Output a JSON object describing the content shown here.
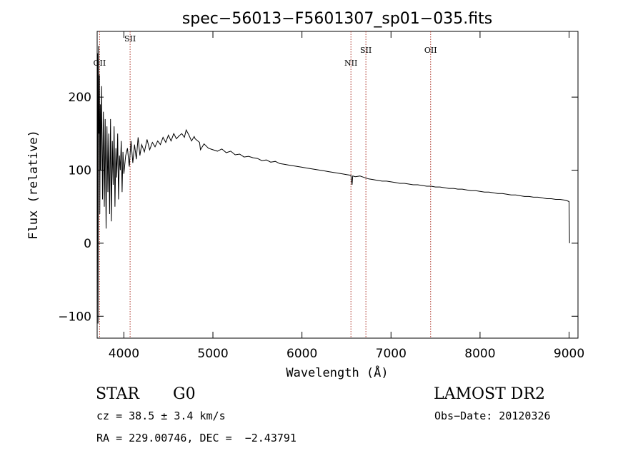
{
  "chart_data": {
    "type": "line",
    "title": "spec−56013−F5601307_sp01−035.fits",
    "xlabel": "Wavelength (Å)",
    "ylabel": "Flux (relative)",
    "xlim": [
      3700,
      9100
    ],
    "ylim": [
      -130,
      290
    ],
    "xticks": [
      4000,
      5000,
      6000,
      7000,
      8000,
      9000
    ],
    "yticks": [
      -100,
      0,
      100,
      200
    ],
    "ytick_labels": [
      "−100",
      "0",
      "100",
      "200"
    ],
    "grid": false,
    "series": [
      {
        "x": [
          3700,
          3705,
          3710,
          3715,
          3720,
          3725,
          3730,
          3735,
          3740,
          3750,
          3760,
          3770,
          3780,
          3790,
          3800,
          3810,
          3820,
          3830,
          3840,
          3850,
          3860,
          3870,
          3880,
          3890,
          3900,
          3910,
          3920,
          3930,
          3940,
          3950,
          3960,
          3970,
          3980,
          3990,
          4000,
          4020,
          4040,
          4060,
          4080,
          4100,
          4120,
          4140,
          4160,
          4180,
          4200,
          4230,
          4260,
          4290,
          4320,
          4350,
          4380,
          4410,
          4440,
          4470,
          4500,
          4530,
          4560,
          4590,
          4620,
          4650,
          4680,
          4700,
          4730,
          4760,
          4790,
          4800,
          4850,
          4860,
          4900,
          4950,
          5000,
          5050,
          5100,
          5150,
          5200,
          5250,
          5300,
          5350,
          5400,
          5450,
          5500,
          5550,
          5600,
          5650,
          5700,
          5750,
          5800,
          5850,
          5900,
          5950,
          6000,
          6050,
          6100,
          6150,
          6200,
          6250,
          6300,
          6350,
          6400,
          6450,
          6500,
          6550,
          6563,
          6570,
          6600,
          6650,
          6700,
          6750,
          6800,
          6850,
          6900,
          6950,
          7000,
          7050,
          7100,
          7150,
          7200,
          7250,
          7300,
          7350,
          7400,
          7450,
          7500,
          7550,
          7600,
          7650,
          7700,
          7750,
          7800,
          7850,
          7900,
          7950,
          8000,
          8050,
          8100,
          8150,
          8200,
          8250,
          8300,
          8350,
          8400,
          8450,
          8500,
          8550,
          8600,
          8650,
          8700,
          8750,
          8800,
          8850,
          8900,
          8950,
          8980,
          9000,
          9005
        ],
        "y": [
          0,
          260,
          -110,
          270,
          150,
          230,
          40,
          190,
          100,
          215,
          60,
          180,
          50,
          170,
          20,
          160,
          70,
          150,
          40,
          170,
          30,
          140,
          80,
          160,
          50,
          130,
          90,
          150,
          60,
          120,
          100,
          140,
          70,
          125,
          95,
          120,
          130,
          105,
          140,
          110,
          135,
          115,
          145,
          120,
          135,
          125,
          142,
          128,
          138,
          132,
          140,
          135,
          145,
          138,
          148,
          140,
          150,
          143,
          147,
          150,
          145,
          155,
          148,
          140,
          146,
          143,
          138,
          128,
          136,
          130,
          128,
          126,
          129,
          124,
          126,
          121,
          122,
          118,
          119,
          117,
          116,
          113,
          114,
          111,
          112,
          109,
          108,
          107,
          106,
          105,
          104,
          103,
          102,
          101,
          100,
          99,
          98,
          97,
          96,
          95,
          94,
          93,
          80,
          92,
          91,
          92,
          90,
          88,
          87,
          86,
          85,
          85,
          84,
          83,
          82,
          82,
          81,
          80,
          80,
          79,
          78,
          78,
          77,
          77,
          76,
          75,
          75,
          74,
          74,
          73,
          72,
          72,
          71,
          70,
          70,
          69,
          68,
          68,
          67,
          66,
          66,
          65,
          64,
          64,
          63,
          63,
          62,
          61,
          61,
          60,
          60,
          59,
          58,
          57,
          0
        ]
      }
    ],
    "lines": [
      {
        "label": "OII",
        "x": 3727
      },
      {
        "label": "SII",
        "x": 4070
      },
      {
        "label": "NII",
        "x": 6550
      },
      {
        "label": "SII",
        "x": 6718
      },
      {
        "label": "OII",
        "x": 7445
      }
    ]
  },
  "info": {
    "class_label": "STAR",
    "subclass": "G0",
    "survey": "LAMOST DR2",
    "redshift_line": "cz = 38.5 ± 3.4 km/s",
    "obs_date": "Obs−Date: 20120326",
    "coords": "RA = 229.00746, DEC =  −2.43791"
  },
  "colors": {
    "line": "#000000",
    "marker": "#b03a2e"
  }
}
